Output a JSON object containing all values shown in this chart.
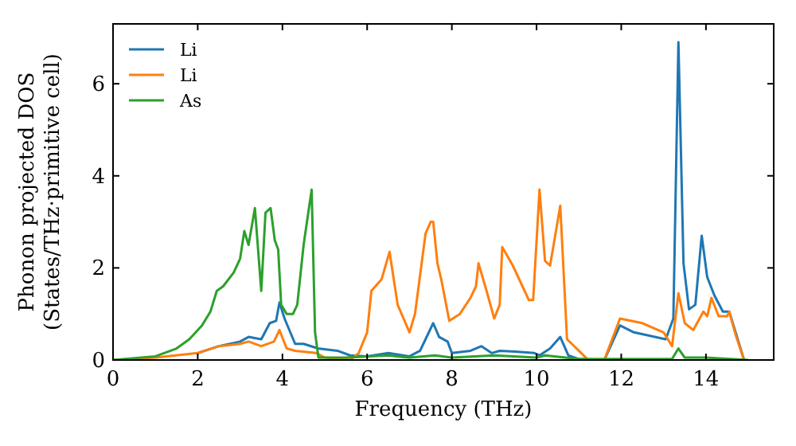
{
  "chart_data": {
    "type": "line",
    "xlabel": "Frequency (THz)",
    "ylabel": "Phonon projected DOS\n(States/THz·primitive cell)",
    "xlim": [
      0,
      15.6
    ],
    "ylim": [
      0,
      7.3
    ],
    "xticks": [
      0,
      2,
      4,
      6,
      8,
      10,
      12,
      14
    ],
    "yticks": [
      0,
      2,
      4,
      6
    ],
    "legend": "top left",
    "grid": false,
    "line_style": "solid",
    "marker": "none",
    "series": [
      {
        "name": "Li",
        "color": "#1f77b4",
        "x": [
          2,
          2.5,
          3,
          3.2,
          3.5,
          3.7,
          3.85,
          3.93,
          4.05,
          4.3,
          4.5,
          4.84,
          5.3,
          5.6,
          6,
          6.5,
          7,
          7.25,
          7.56,
          7.7,
          7.9,
          8.0,
          8.44,
          8.7,
          8.94,
          9.13,
          9.5,
          9.95,
          10.07,
          10.32,
          10.56,
          10.75,
          11.0,
          11.6,
          11.97,
          12.3,
          13.05,
          13.23,
          13.35,
          13.47,
          13.6,
          13.75,
          13.9,
          14.03,
          14.2,
          14.4,
          14.55,
          14.9
        ],
        "values": [
          0.15,
          0.3,
          0.4,
          0.5,
          0.45,
          0.8,
          0.85,
          1.25,
          0.9,
          0.35,
          0.35,
          0.25,
          0.2,
          0.1,
          0.08,
          0.15,
          0.08,
          0.2,
          0.8,
          0.5,
          0.4,
          0.15,
          0.2,
          0.3,
          0.15,
          0.2,
          0.18,
          0.15,
          0.1,
          0.25,
          0.5,
          0.1,
          0.02,
          0,
          0.75,
          0.6,
          0.45,
          0.9,
          6.9,
          2.1,
          1.1,
          1.2,
          2.7,
          1.8,
          1.4,
          1.05,
          1.05,
          0
        ]
      },
      {
        "name": "Li",
        "color": "#ff7f0e",
        "x": [
          0,
          1,
          2,
          2.5,
          3,
          3.2,
          3.5,
          3.8,
          3.93,
          4.1,
          4.3,
          4.8,
          5.0,
          5.6,
          5.8,
          6.0,
          6.1,
          6.34,
          6.53,
          6.72,
          7.0,
          7.13,
          7.38,
          7.5,
          7.56,
          7.66,
          7.75,
          7.94,
          8.19,
          8.44,
          8.57,
          8.63,
          8.82,
          9.0,
          9.13,
          9.19,
          9.44,
          9.82,
          9.92,
          10.07,
          10.2,
          10.32,
          10.56,
          10.72,
          11.0,
          11.22,
          11.6,
          11.97,
          12.5,
          13.0,
          13.2,
          13.35,
          13.5,
          13.7,
          13.94,
          14.03,
          14.13,
          14.3,
          14.5,
          14.55,
          14.7,
          14.9
        ],
        "values": [
          0,
          0.05,
          0.15,
          0.3,
          0.35,
          0.4,
          0.3,
          0.4,
          0.65,
          0.25,
          0.2,
          0.15,
          0.05,
          0,
          0.15,
          0.6,
          1.5,
          1.75,
          2.35,
          1.2,
          0.6,
          1.0,
          2.75,
          3.0,
          3.0,
          2.1,
          1.75,
          0.85,
          1.0,
          1.35,
          1.6,
          2.1,
          1.5,
          0.9,
          1.2,
          2.45,
          2.05,
          1.3,
          1.3,
          3.7,
          2.15,
          2.05,
          3.35,
          0.45,
          0.2,
          0,
          0,
          0.9,
          0.8,
          0.6,
          0.3,
          1.45,
          0.8,
          0.65,
          1.05,
          0.95,
          1.35,
          0.95,
          0.95,
          1.05,
          0.55,
          0
        ]
      },
      {
        "name": "As",
        "color": "#2ca02c",
        "x": [
          0,
          1,
          1.5,
          1.8,
          2.1,
          2.3,
          2.45,
          2.6,
          2.85,
          3.0,
          3.1,
          3.2,
          3.35,
          3.5,
          3.6,
          3.72,
          3.82,
          3.9,
          3.97,
          4.1,
          4.25,
          4.35,
          4.5,
          4.69,
          4.77,
          4.85,
          5.5,
          6.5,
          7,
          7.6,
          8,
          9,
          10,
          10.2,
          11,
          13.2,
          13.35,
          13.5,
          14,
          15
        ],
        "values": [
          0,
          0.08,
          0.25,
          0.45,
          0.75,
          1.05,
          1.5,
          1.6,
          1.9,
          2.2,
          2.8,
          2.5,
          3.3,
          1.5,
          3.2,
          3.3,
          2.6,
          2.4,
          1.2,
          1.0,
          1.0,
          1.2,
          2.5,
          3.7,
          0.6,
          0.05,
          0.05,
          0.1,
          0.05,
          0.1,
          0.05,
          0.1,
          0.05,
          0.1,
          0.02,
          0.02,
          0.25,
          0.05,
          0.05,
          0
        ]
      }
    ]
  }
}
